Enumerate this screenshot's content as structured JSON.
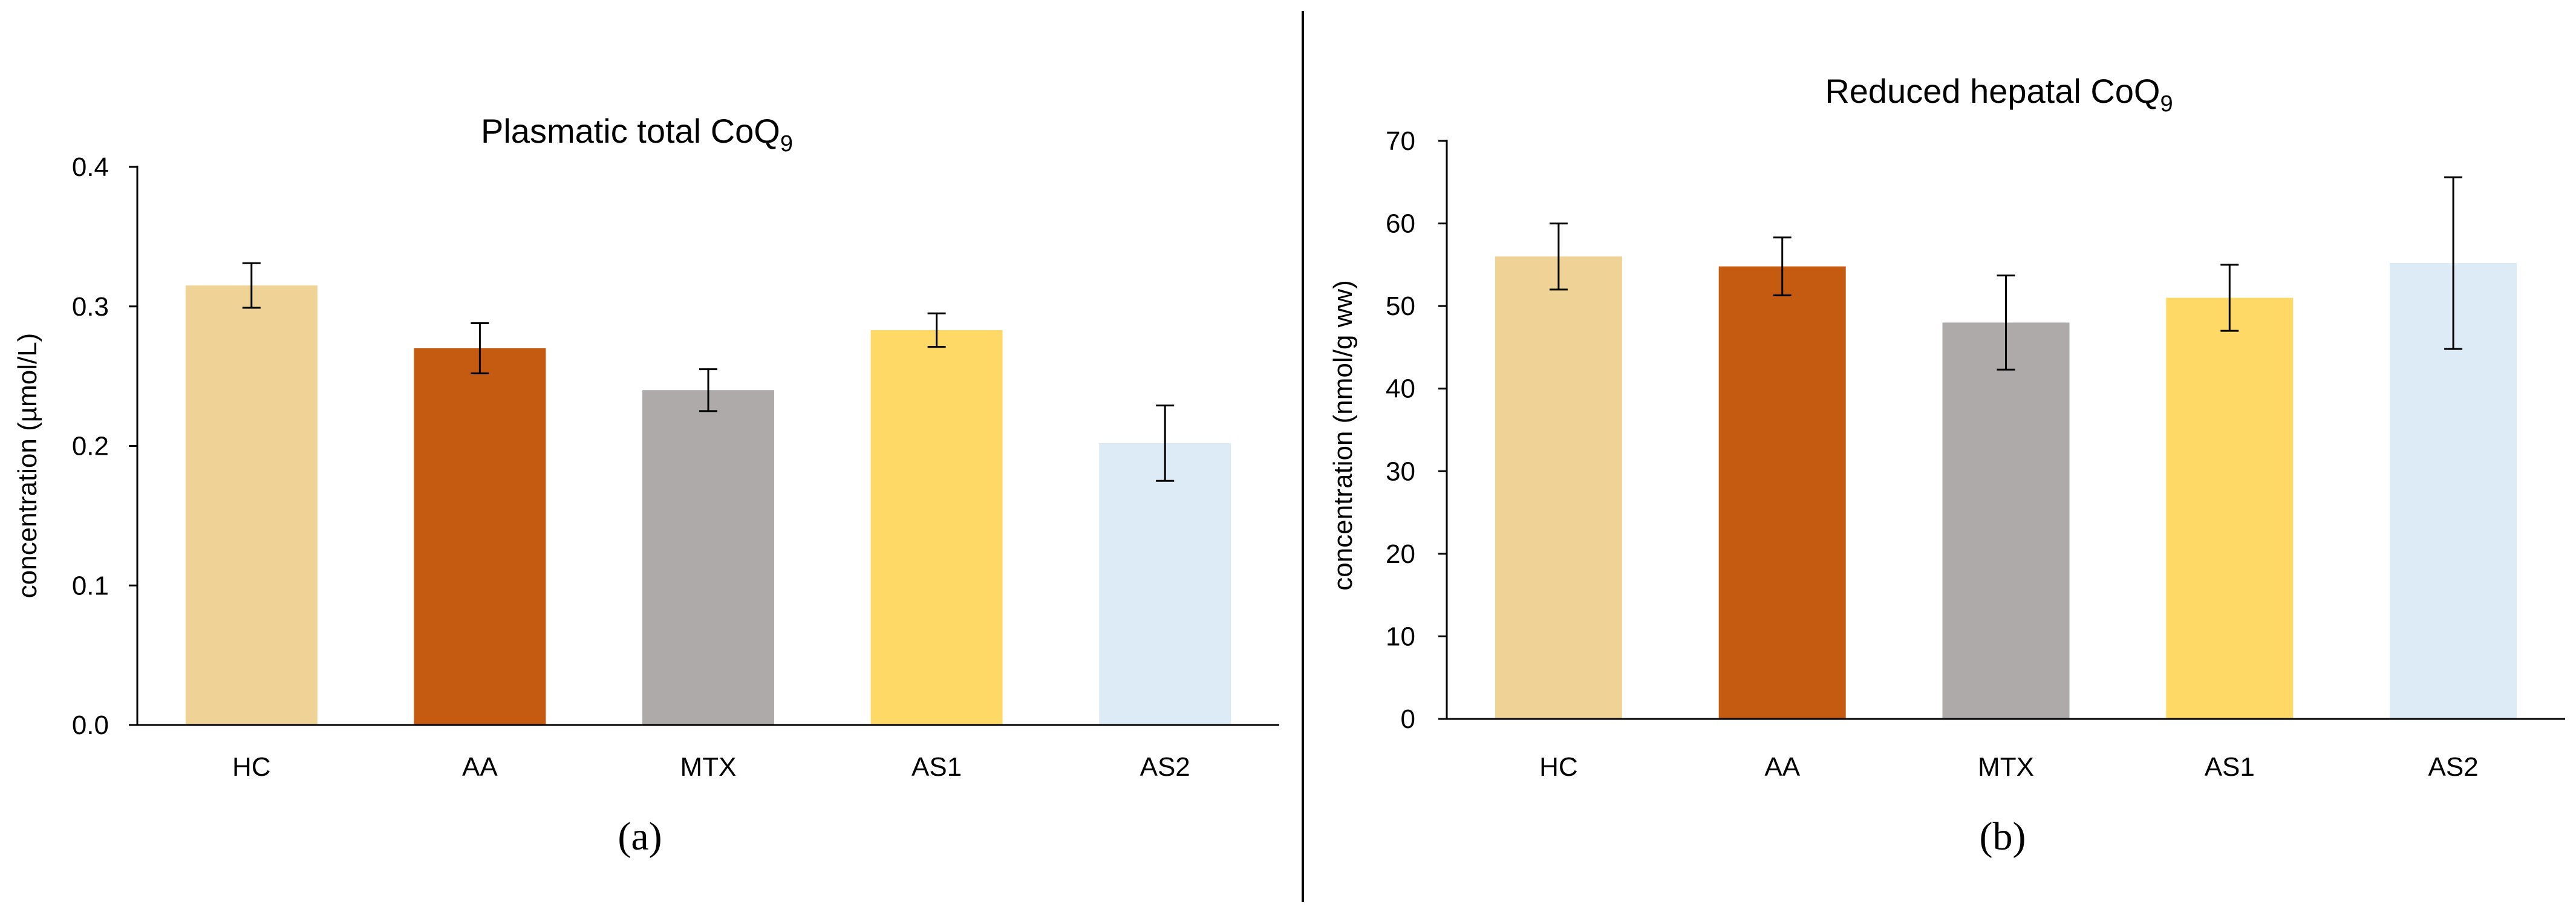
{
  "colors": {
    "HC": "#efd396",
    "AA": "#c55a11",
    "MTX": "#aeaaaa",
    "AS1": "#ffd966",
    "AS2": "#ddebf7",
    "axis": "#000000",
    "divider": "#000000"
  },
  "chart_data": [
    {
      "type": "bar",
      "title": "Plasmatic total CoQ",
      "title_subscript": "9",
      "panel_label": "(a)",
      "xlabel": "",
      "ylabel": "concentration (µmol/L)",
      "categories": [
        "HC",
        "AA",
        "MTX",
        "AS1",
        "AS2"
      ],
      "values": [
        0.315,
        0.27,
        0.24,
        0.283,
        0.202
      ],
      "errors": [
        0.016,
        0.018,
        0.015,
        0.012,
        0.027
      ],
      "ylim": [
        0,
        0.4
      ],
      "yticks": [
        "0.0",
        "0.1",
        "0.2",
        "0.3",
        "0.4"
      ],
      "grid": false,
      "legend": "none"
    },
    {
      "type": "bar",
      "title": "Reduced hepatal CoQ",
      "title_subscript": "9",
      "panel_label": "(b)",
      "xlabel": "",
      "ylabel": "concentration (nmol/g ww)",
      "categories": [
        "HC",
        "AA",
        "MTX",
        "AS1",
        "AS2"
      ],
      "values": [
        56,
        54.8,
        48,
        51,
        55.2
      ],
      "errors": [
        4,
        3.5,
        5.7,
        4,
        10.4
      ],
      "ylim": [
        0,
        70
      ],
      "yticks": [
        "0",
        "10",
        "20",
        "30",
        "40",
        "50",
        "60",
        "70"
      ],
      "grid": false,
      "legend": "none"
    }
  ]
}
